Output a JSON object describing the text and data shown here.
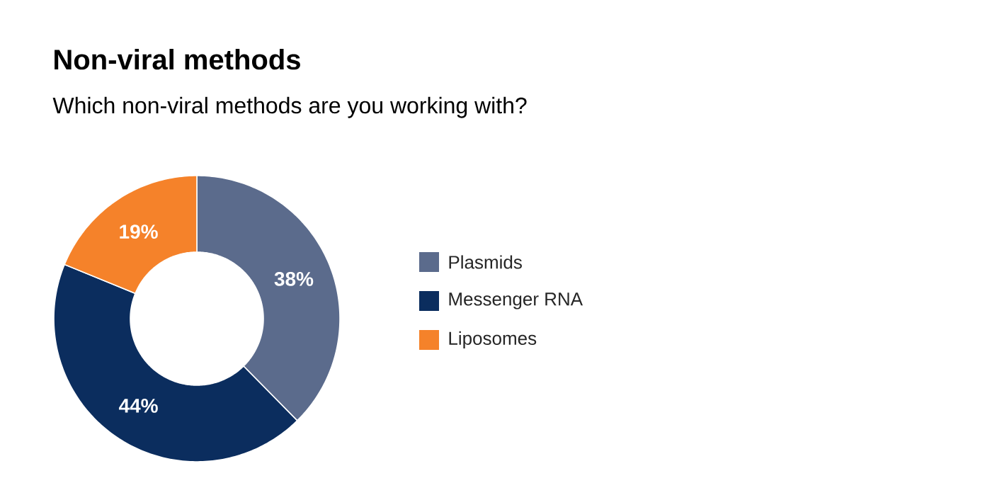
{
  "chart_data": {
    "type": "donut",
    "title": "Non-viral methods",
    "subtitle": "Which non-viral methods are you working with?",
    "categories": [
      "Plasmids",
      "Messenger RNA",
      "Liposomes"
    ],
    "values": [
      38,
      44,
      19
    ],
    "value_labels": [
      "38%",
      "44%",
      "19%"
    ],
    "colors": [
      "#5b6b8c",
      "#0b2d5e",
      "#f5822a"
    ],
    "legend": "right"
  }
}
